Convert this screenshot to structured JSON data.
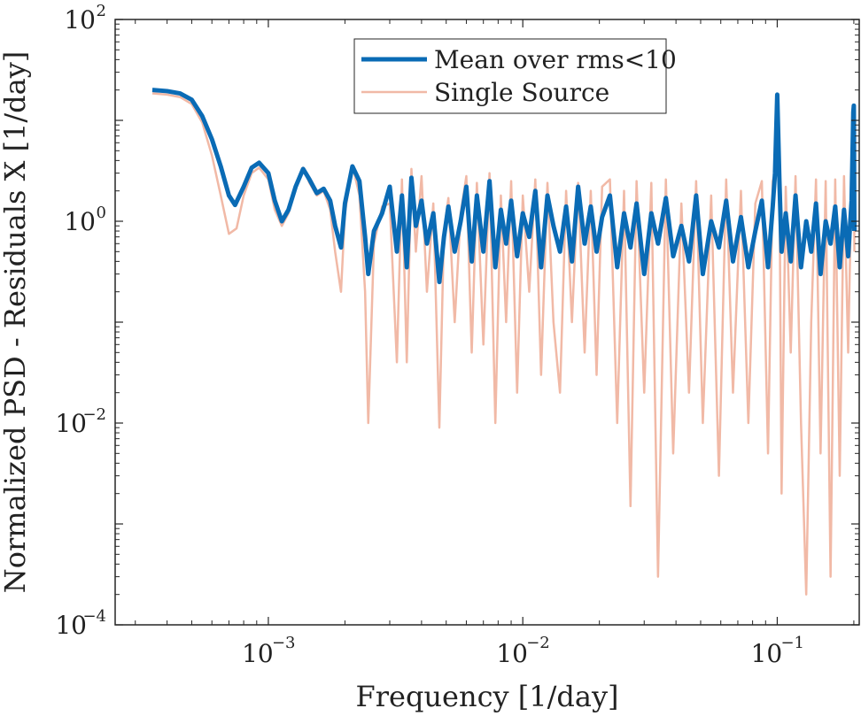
{
  "chart_data": {
    "type": "line",
    "title": "",
    "xlabel": "Frequency [1/day]",
    "ylabel": "Normalized PSD - Residuals X [1/day]",
    "xscale": "log",
    "yscale": "log",
    "xlim": [
      0.00025,
      0.21
    ],
    "ylim": [
      0.0001,
      100
    ],
    "grid": false,
    "legend_location": "top-center",
    "xticks": [
      {
        "base": "10",
        "exp": "−3",
        "value": 0.001
      },
      {
        "base": "10",
        "exp": "−2",
        "value": 0.01
      },
      {
        "base": "10",
        "exp": "−1",
        "value": 0.1
      }
    ],
    "yticks": [
      {
        "base": "10",
        "exp": "−4",
        "value": 0.0001
      },
      {
        "base": "10",
        "exp": "−2",
        "value": 0.01
      },
      {
        "base": "10",
        "exp": "0",
        "value": 1
      },
      {
        "base": "10",
        "exp": "2",
        "value": 100
      }
    ],
    "series": [
      {
        "name": "Mean over rms<10",
        "color": "#0a6bb5",
        "x": [
          0.00035,
          0.0004,
          0.00045,
          0.0005,
          0.00055,
          0.0006,
          0.00065,
          0.0007,
          0.00074,
          0.0008,
          0.00086,
          0.00092,
          0.001,
          0.00106,
          0.00113,
          0.0012,
          0.00128,
          0.00137,
          0.00145,
          0.00155,
          0.00165,
          0.00175,
          0.00183,
          0.00193,
          0.002,
          0.00214,
          0.00228,
          0.0024,
          0.00247,
          0.0026,
          0.0028,
          0.003,
          0.0032,
          0.00335,
          0.0035,
          0.00365,
          0.0038,
          0.004,
          0.0042,
          0.00445,
          0.0047,
          0.0049,
          0.0051,
          0.0054,
          0.0057,
          0.006,
          0.0063,
          0.0066,
          0.007,
          0.0074,
          0.0078,
          0.0082,
          0.0086,
          0.009,
          0.0095,
          0.01,
          0.0106,
          0.0112,
          0.0118,
          0.0125,
          0.0132,
          0.014,
          0.0148,
          0.0156,
          0.0165,
          0.0175,
          0.0185,
          0.0195,
          0.0205,
          0.022,
          0.0235,
          0.025,
          0.0265,
          0.028,
          0.03,
          0.032,
          0.034,
          0.0365,
          0.039,
          0.042,
          0.045,
          0.048,
          0.051,
          0.055,
          0.059,
          0.063,
          0.067,
          0.072,
          0.077,
          0.082,
          0.087,
          0.092,
          0.096,
          0.098,
          0.1,
          0.102,
          0.104,
          0.108,
          0.113,
          0.118,
          0.124,
          0.13,
          0.136,
          0.142,
          0.148,
          0.155,
          0.162,
          0.169,
          0.176,
          0.183,
          0.19,
          0.196,
          0.199,
          0.2,
          0.201
        ],
        "y": [
          20,
          19.5,
          18.5,
          16,
          11,
          6.5,
          3.5,
          1.8,
          1.45,
          2.2,
          3.4,
          3.8,
          3.0,
          1.6,
          1.0,
          1.3,
          2.2,
          3.3,
          2.6,
          1.9,
          2.1,
          1.6,
          0.9,
          0.55,
          1.5,
          3.5,
          2.5,
          0.7,
          0.3,
          0.8,
          1.2,
          2.2,
          0.5,
          1.8,
          0.35,
          2.7,
          0.9,
          1.6,
          0.6,
          1.2,
          0.25,
          0.7,
          1.4,
          0.5,
          1.0,
          2.2,
          0.4,
          1.8,
          0.5,
          2.5,
          0.35,
          1.3,
          0.6,
          1.6,
          0.45,
          1.2,
          0.7,
          2.0,
          0.35,
          1.8,
          0.9,
          0.5,
          1.4,
          0.4,
          2.2,
          0.6,
          1.4,
          0.5,
          1.1,
          1.8,
          0.35,
          1.2,
          0.55,
          1.5,
          0.3,
          1.2,
          0.6,
          1.7,
          0.45,
          0.9,
          0.4,
          1.8,
          0.3,
          1.0,
          0.55,
          1.6,
          0.4,
          1.1,
          0.35,
          0.8,
          1.6,
          0.35,
          1.4,
          3.0,
          18,
          2.5,
          0.5,
          1.2,
          0.4,
          1.8,
          0.35,
          1.0,
          0.5,
          1.5,
          0.3,
          1.0,
          0.6,
          1.4,
          0.35,
          1.3,
          0.45,
          1.6,
          12,
          14,
          0.8
        ]
      },
      {
        "name": "Single Source",
        "color": "#f1b9a6",
        "x": [
          0.00035,
          0.0004,
          0.00045,
          0.0005,
          0.00055,
          0.0006,
          0.00065,
          0.0007,
          0.00075,
          0.0008,
          0.00086,
          0.00092,
          0.001,
          0.00106,
          0.00113,
          0.0012,
          0.00128,
          0.00137,
          0.00145,
          0.00155,
          0.00165,
          0.00175,
          0.00183,
          0.00193,
          0.002,
          0.00214,
          0.00228,
          0.0024,
          0.00247,
          0.0026,
          0.0028,
          0.003,
          0.0032,
          0.00335,
          0.0035,
          0.00365,
          0.0038,
          0.004,
          0.0042,
          0.00445,
          0.0047,
          0.0049,
          0.0051,
          0.0054,
          0.0057,
          0.006,
          0.0063,
          0.0066,
          0.007,
          0.0074,
          0.0078,
          0.0082,
          0.0086,
          0.009,
          0.0095,
          0.01,
          0.0106,
          0.0112,
          0.0118,
          0.0125,
          0.0132,
          0.014,
          0.0148,
          0.0156,
          0.0165,
          0.0175,
          0.0185,
          0.0195,
          0.0205,
          0.022,
          0.0235,
          0.025,
          0.0265,
          0.028,
          0.03,
          0.032,
          0.034,
          0.0365,
          0.039,
          0.042,
          0.045,
          0.048,
          0.051,
          0.055,
          0.059,
          0.063,
          0.067,
          0.072,
          0.077,
          0.082,
          0.087,
          0.092,
          0.096,
          0.098,
          0.1,
          0.102,
          0.104,
          0.108,
          0.113,
          0.118,
          0.124,
          0.13,
          0.136,
          0.142,
          0.148,
          0.155,
          0.162,
          0.169,
          0.176,
          0.183,
          0.19,
          0.196,
          0.199,
          0.2,
          0.201
        ],
        "y": [
          18.5,
          18,
          17,
          14.5,
          9.5,
          4.5,
          1.8,
          0.75,
          0.85,
          1.8,
          3.0,
          3.4,
          2.6,
          1.3,
          0.9,
          1.2,
          2.1,
          3.4,
          2.4,
          1.8,
          2.0,
          1.3,
          0.5,
          0.2,
          1.2,
          3.6,
          1.8,
          0.2,
          0.01,
          0.6,
          1.4,
          1.5,
          0.04,
          2.6,
          0.04,
          3.3,
          0.5,
          2.8,
          0.2,
          1.5,
          0.009,
          0.8,
          1.7,
          0.1,
          1.2,
          2.8,
          0.05,
          2.4,
          0.06,
          3.0,
          0.01,
          1.8,
          0.1,
          2.5,
          0.02,
          1.8,
          0.2,
          2.6,
          0.03,
          2.4,
          0.1,
          0.02,
          2.0,
          0.1,
          2.4,
          0.05,
          2.0,
          0.03,
          2.2,
          2.6,
          0.01,
          2.0,
          0.0015,
          2.5,
          0.02,
          2.4,
          0.0003,
          2.6,
          0.005,
          1.5,
          0.02,
          2.5,
          0.01,
          1.8,
          0.003,
          2.6,
          0.02,
          2.0,
          0.01,
          1.5,
          2.5,
          0.005,
          2.5,
          3.0,
          16,
          3.0,
          0.002,
          2.2,
          0.05,
          2.8,
          0.01,
          0.0002,
          0.1,
          2.6,
          0.005,
          2.5,
          0.0003,
          2.6,
          0.003,
          2.8,
          0.05,
          2.6,
          10,
          12,
          0.5
        ]
      }
    ]
  }
}
